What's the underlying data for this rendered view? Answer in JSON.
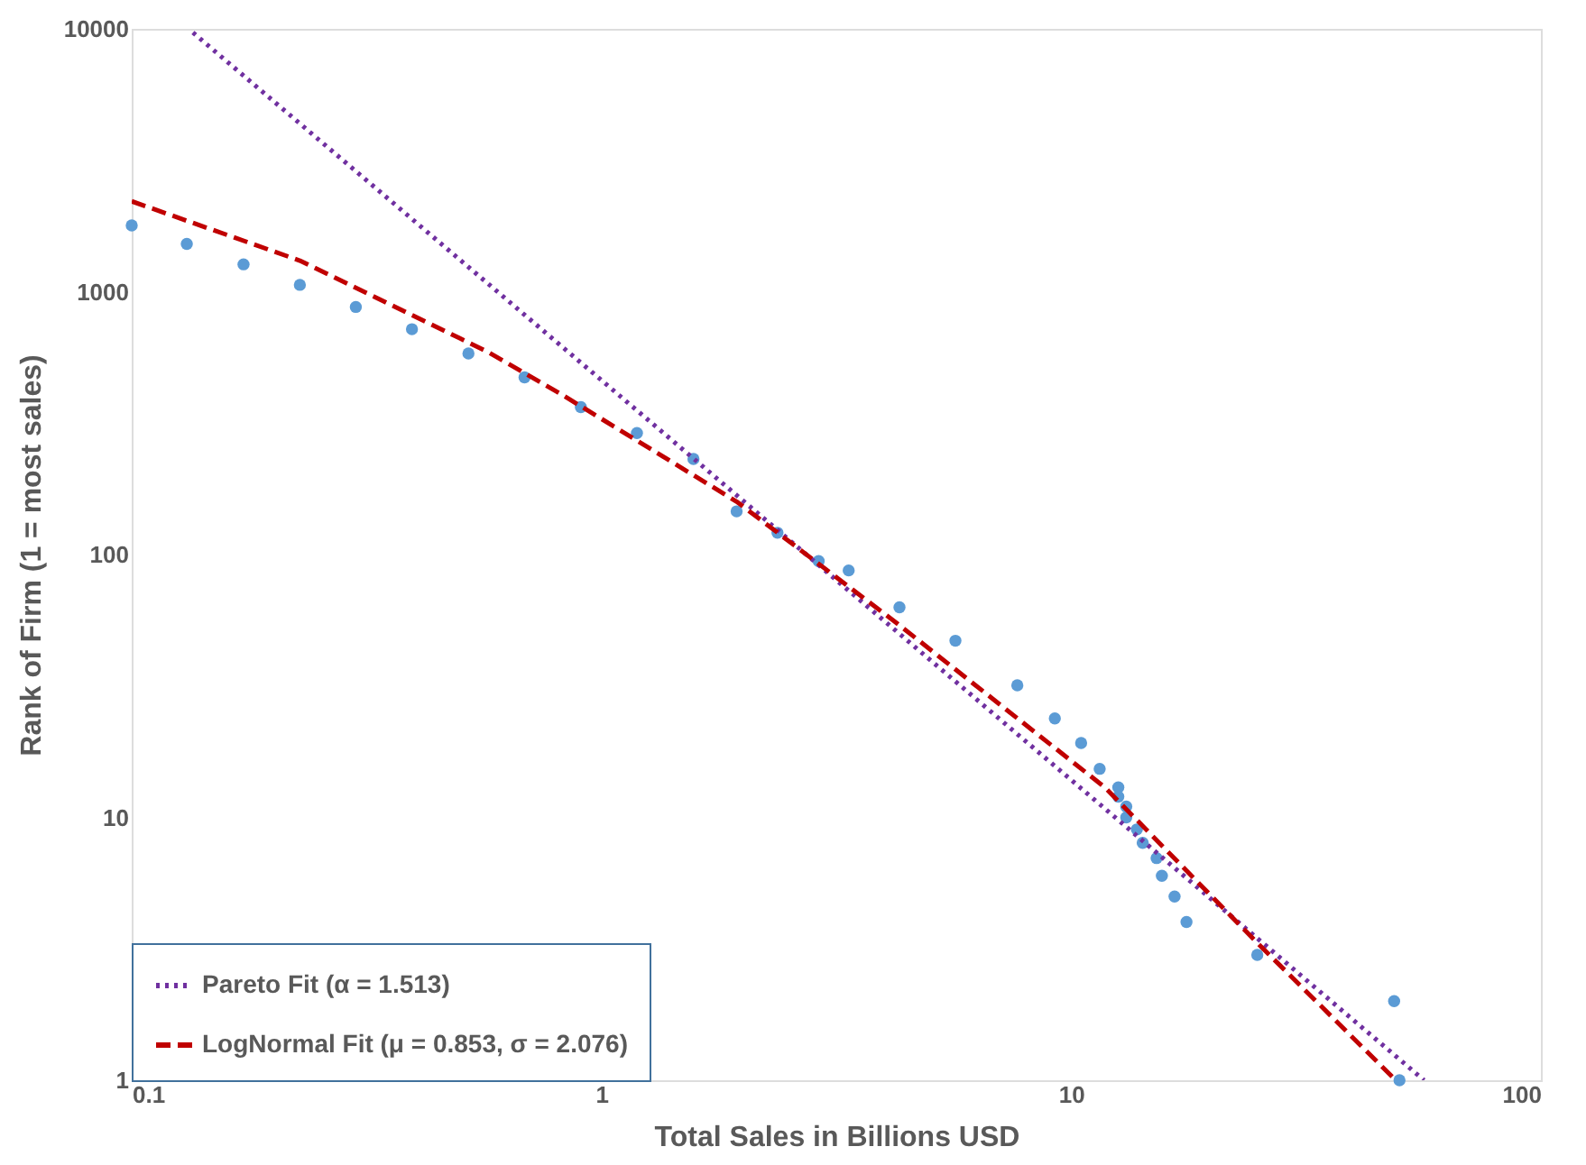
{
  "chart_data": {
    "type": "scatter",
    "xlabel": "Total Sales in Billions USD",
    "ylabel": "Rank of Firm (1 = most sales)",
    "log": "xy",
    "xlim": [
      0.1,
      100
    ],
    "ylim": [
      1,
      10000
    ],
    "xticks": [
      0.1,
      1,
      10,
      100
    ],
    "yticks": [
      1,
      10,
      100,
      1000,
      10000
    ],
    "grid": false,
    "legend": "bottom left",
    "series": [
      {
        "color": "#5b9bd5",
        "marker": "circle",
        "x": [
          0.1,
          0.131,
          0.173,
          0.228,
          0.3,
          0.395,
          0.521,
          0.686,
          0.904,
          1.19,
          1.57,
          1.94,
          2.37,
          2.9,
          3.36,
          4.31,
          5.67,
          7.68,
          9.23,
          10.5,
          11.5,
          12.6,
          12.6,
          13.1,
          13.1,
          13.8,
          14.2,
          15.2,
          15.6,
          16.6,
          17.6,
          24.9,
          48.7,
          50.0
        ],
        "values": [
          1787,
          1520,
          1271,
          1062,
          875,
          720,
          582,
          472,
          364,
          290,
          231,
          146,
          121,
          94.5,
          87,
          63,
          47,
          31.8,
          23.8,
          19.2,
          15.3,
          13,
          12,
          11,
          10,
          9,
          8,
          7,
          6,
          5,
          4,
          3,
          2,
          1
        ]
      },
      {
        "type": "line",
        "name": "Pareto Fit (α = 1.513)",
        "color": "#7030a0",
        "line_style": "dotted",
        "x": [
          0.135,
          56.4
        ],
        "values": [
          9680,
          1
        ]
      },
      {
        "type": "line",
        "name": "LogNormal Fit (μ = 0.853, σ = 2.076)",
        "color": "#c00000",
        "line_style": "dashed",
        "x": [
          0.1,
          0.228,
          0.571,
          0.82,
          1.94,
          4.19,
          11.8,
          24.7,
          49.1
        ],
        "values": [
          2208,
          1313,
          592,
          408,
          159,
          56,
          13,
          3.38,
          1
        ]
      }
    ]
  }
}
